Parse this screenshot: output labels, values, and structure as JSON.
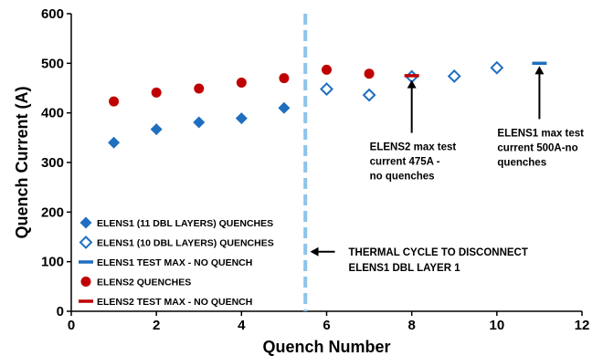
{
  "chart_data": {
    "type": "scatter",
    "xlabel": "Quench Number",
    "ylabel": "Quench Current (A)",
    "xlim": [
      0,
      12
    ],
    "ylim": [
      0,
      600
    ],
    "xticks": [
      "0",
      "2",
      "4",
      "6",
      "8",
      "10",
      "12"
    ],
    "yticks": [
      "0",
      "100",
      "200",
      "300",
      "400",
      "500",
      "600"
    ],
    "grid": false,
    "legend_position": "bottom-left",
    "series": [
      {
        "name": "ELENS1 (11 DBL LAYERS) QUENCHES",
        "marker": "diamond-filled",
        "color": "#1f6fc0",
        "x": [
          1,
          2,
          3,
          4,
          5
        ],
        "y": [
          340,
          367,
          381,
          389,
          410
        ]
      },
      {
        "name": "ELENS1 (10 DBL LAYERS) QUENCHES",
        "marker": "diamond-open",
        "color": "#1f6fc0",
        "x": [
          6,
          7,
          8,
          9,
          10
        ],
        "y": [
          448,
          436,
          473,
          474,
          491
        ]
      },
      {
        "name": "ELENS1 TEST MAX - NO QUENCH",
        "marker": "dash",
        "color": "#1f6fc0",
        "x": [
          11
        ],
        "y": [
          500
        ]
      },
      {
        "name": "ELENS2 QUENCHES",
        "marker": "circle",
        "color": "#c00000",
        "x": [
          1,
          2,
          3,
          4,
          5,
          6,
          7
        ],
        "y": [
          423,
          441,
          449,
          461,
          470,
          487,
          479
        ]
      },
      {
        "name": "ELENS2 TEST MAX - NO QUENCH",
        "marker": "dash",
        "color": "#c00000",
        "x": [
          8
        ],
        "y": [
          475
        ]
      }
    ],
    "vline": {
      "x": 5.5,
      "color": "#8ec3ea"
    },
    "annotations": [
      {
        "lines": [
          "ELENS2 max test",
          "current 475A -",
          "no quenches"
        ],
        "target_x": 8,
        "target_y": 470,
        "anchor": "below"
      },
      {
        "lines": [
          "ELENS1 max test",
          "current 500A-no",
          "quenches"
        ],
        "target_x": 11,
        "target_y": 498,
        "anchor": "below"
      },
      {
        "lines": [
          "THERMAL CYCLE TO DISCONNECT",
          "ELENS1 DBL LAYER 1"
        ],
        "target_x": 5.55,
        "target_y": 120,
        "anchor": "right"
      }
    ]
  }
}
